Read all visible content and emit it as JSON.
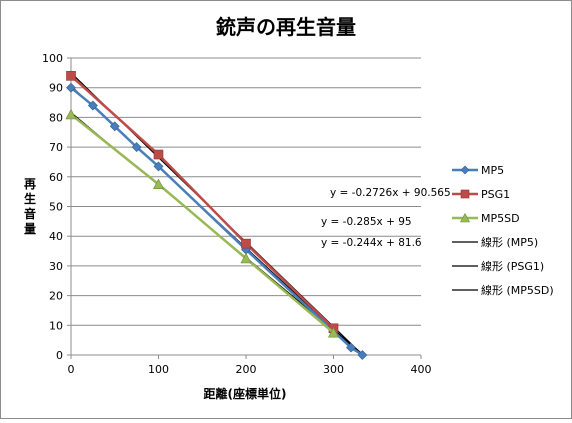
{
  "chart_data": {
    "type": "scatter",
    "title": "銃声の再生音量",
    "xlabel": "距離(座標単位)",
    "ylabel": "再生音量",
    "xlim": [
      0,
      400
    ],
    "ylim": [
      0,
      100
    ],
    "x_ticks": [
      "0",
      "100",
      "200",
      "300",
      "400"
    ],
    "y_ticks": [
      "0",
      "10",
      "20",
      "30",
      "40",
      "50",
      "60",
      "70",
      "80",
      "90",
      "100"
    ],
    "grid": "horizontal",
    "legend_position": "right",
    "series": [
      {
        "name": "MP5",
        "color": "#4a7ebb",
        "marker": "diamond",
        "points": [
          [
            0,
            90
          ],
          [
            25,
            84
          ],
          [
            50,
            77
          ],
          [
            75,
            70
          ],
          [
            100,
            63.5
          ],
          [
            200,
            35.5
          ],
          [
            300,
            8
          ],
          [
            320,
            2.5
          ],
          [
            333,
            0
          ]
        ]
      },
      {
        "name": "PSG1",
        "color": "#be4b48",
        "marker": "square",
        "points": [
          [
            0,
            94
          ],
          [
            100,
            67.5
          ],
          [
            200,
            37.5
          ],
          [
            300,
            9
          ]
        ]
      },
      {
        "name": "MP5SD",
        "color": "#98b954",
        "marker": "triangle",
        "points": [
          [
            0,
            81
          ],
          [
            100,
            57.5
          ],
          [
            200,
            32.5
          ],
          [
            300,
            7.5
          ]
        ]
      }
    ],
    "trendlines": [
      {
        "name": "線形 (MP5)",
        "slope": -0.2726,
        "intercept": 90.565,
        "x_range": [
          0,
          333
        ],
        "equation": "y = -0.2726x + 90.565"
      },
      {
        "name": "線形 (PSG1)",
        "slope": -0.285,
        "intercept": 95,
        "x_range": [
          0,
          333
        ],
        "equation": "y = -0.285x + 95"
      },
      {
        "name": "線形 (MP5SD)",
        "slope": -0.244,
        "intercept": 81.6,
        "x_range": [
          0,
          334
        ],
        "equation": "y = -0.244x + 81.6"
      }
    ]
  }
}
